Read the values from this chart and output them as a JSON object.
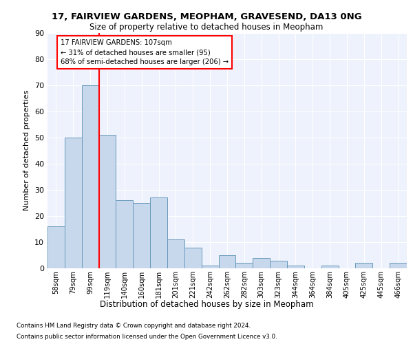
{
  "title1": "17, FAIRVIEW GARDENS, MEOPHAM, GRAVESEND, DA13 0NG",
  "title2": "Size of property relative to detached houses in Meopham",
  "xlabel": "Distribution of detached houses by size in Meopham",
  "ylabel": "Number of detached properties",
  "categories": [
    "58sqm",
    "79sqm",
    "99sqm",
    "119sqm",
    "140sqm",
    "160sqm",
    "181sqm",
    "201sqm",
    "221sqm",
    "242sqm",
    "262sqm",
    "282sqm",
    "303sqm",
    "323sqm",
    "344sqm",
    "364sqm",
    "384sqm",
    "405sqm",
    "425sqm",
    "445sqm",
    "466sqm"
  ],
  "values": [
    16,
    50,
    70,
    51,
    26,
    25,
    27,
    11,
    8,
    1,
    5,
    2,
    4,
    3,
    1,
    0,
    1,
    0,
    2,
    0,
    2
  ],
  "bar_color": "#c8d8ec",
  "bar_edge_color": "#6699bb",
  "red_line_x": 2.5,
  "annotation_text_line1": "17 FAIRVIEW GARDENS: 107sqm",
  "annotation_text_line2": "← 31% of detached houses are smaller (95)",
  "annotation_text_line3": "68% of semi-detached houses are larger (206) →",
  "ylim": [
    0,
    90
  ],
  "yticks": [
    0,
    10,
    20,
    30,
    40,
    50,
    60,
    70,
    80,
    90
  ],
  "background_color": "#eef2fc",
  "footer_line1": "Contains HM Land Registry data © Crown copyright and database right 2024.",
  "footer_line2": "Contains public sector information licensed under the Open Government Licence v3.0."
}
